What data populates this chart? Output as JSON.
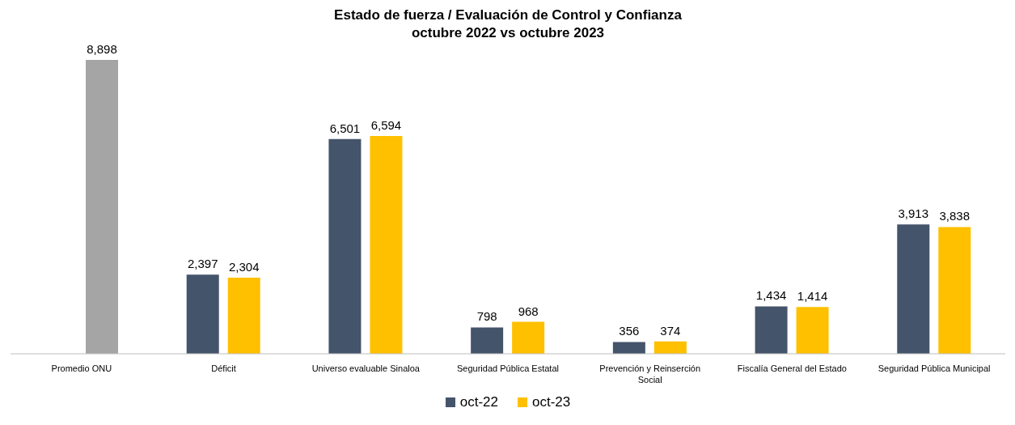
{
  "chart_data": {
    "type": "bar",
    "title": "Estado de fuerza / Evaluación de Control y Confianza",
    "subtitle": "octubre 2022 vs octubre 2023",
    "categories": [
      "Promedio ONU",
      "Déficit",
      "Universo evaluable Sinaloa",
      "Seguridad Pública Estatal",
      "Prevención y Reinserción Social",
      "Fiscalía General del Estado",
      "Seguridad Pública Municipal"
    ],
    "series": [
      {
        "name": "oct-22",
        "color": "#44546a",
        "values": [
          null,
          2397,
          6501,
          798,
          356,
          1434,
          3913
        ],
        "value_labels": [
          null,
          "2,397",
          "6,501",
          "798",
          "356",
          "1,434",
          "3,913"
        ]
      },
      {
        "name": "oct-23",
        "color": "#ffc000",
        "colors": [
          "#a5a5a5",
          "#ffc000",
          "#ffc000",
          "#ffc000",
          "#ffc000",
          "#ffc000",
          "#ffc000"
        ],
        "values": [
          8898,
          2304,
          6594,
          968,
          374,
          1414,
          3838
        ],
        "value_labels": [
          "8,898",
          "2,304",
          "6,594",
          "968",
          "374",
          "1,414",
          "3,838"
        ]
      }
    ],
    "legend": "bottom",
    "grid": false,
    "tick_labels": "x"
  }
}
